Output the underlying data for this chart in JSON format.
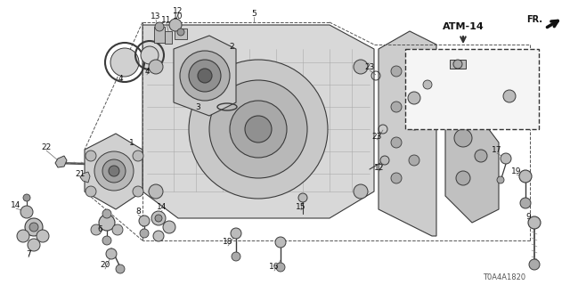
{
  "bg_color": "#ffffff",
  "line_color": "#3a3a3a",
  "text_color": "#111111",
  "page_ref": "ATM-14",
  "part_code": "T0A4A1820",
  "figsize": [
    6.4,
    3.2
  ],
  "dpi": 100
}
